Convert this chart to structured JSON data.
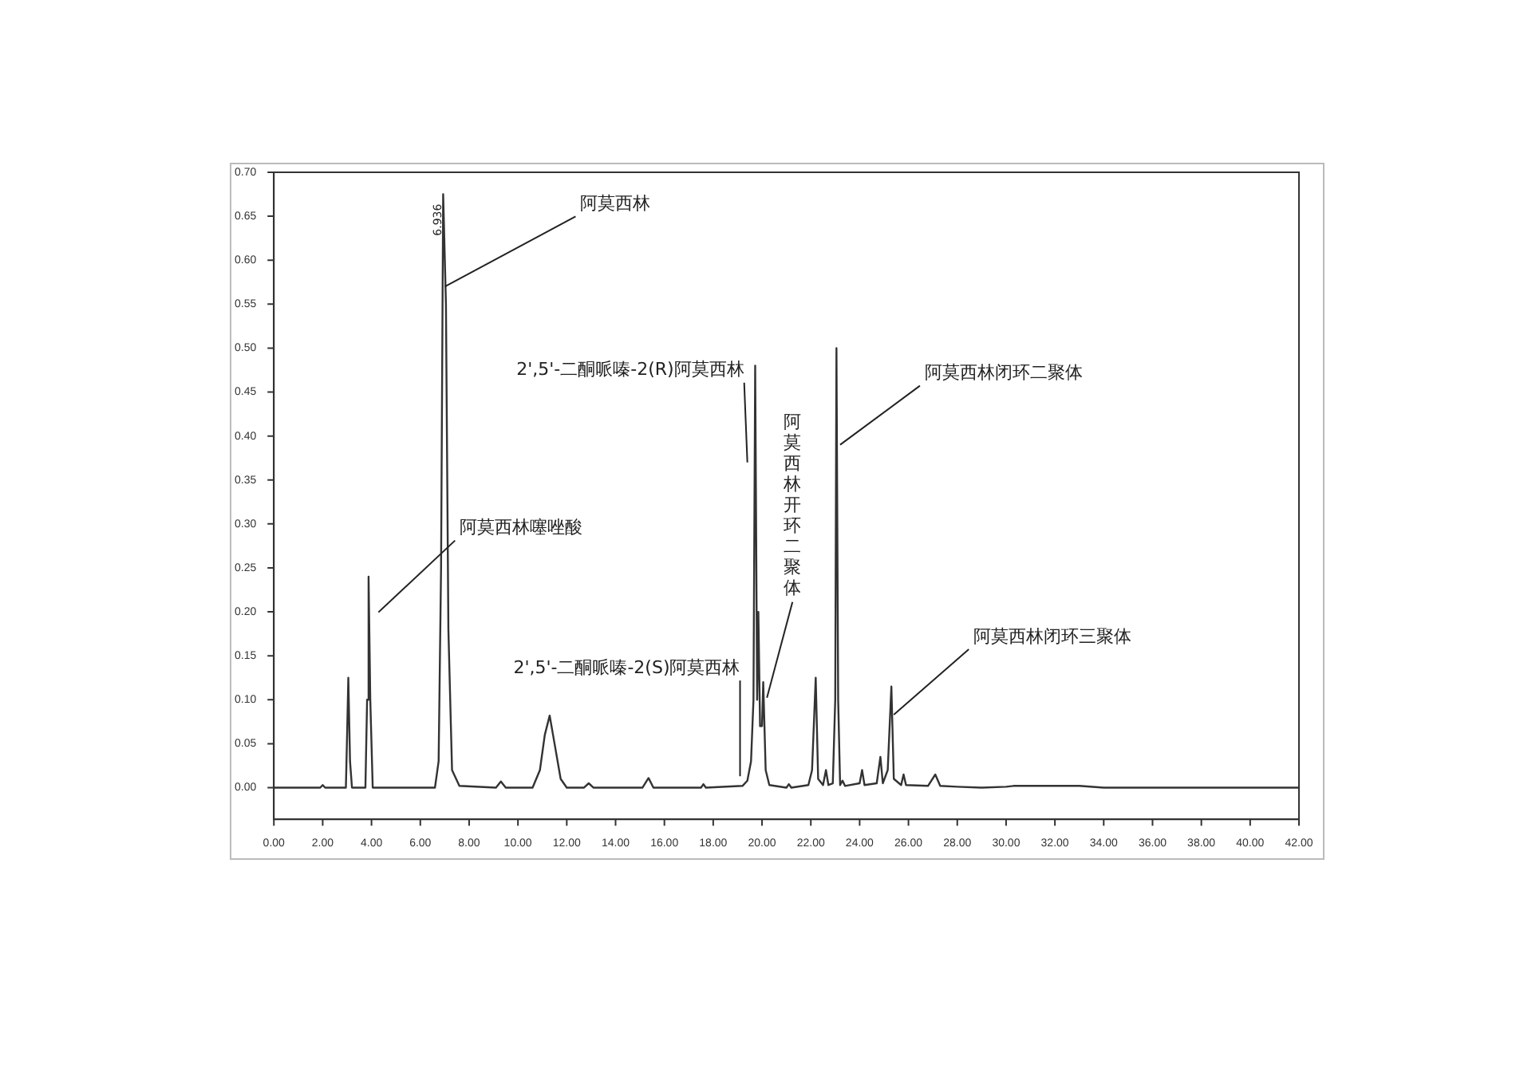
{
  "chart_data": {
    "type": "line",
    "grid": false,
    "legend": false,
    "marker": "none",
    "xlim": [
      0,
      42
    ],
    "ylim": [
      -0.036,
      0.7
    ],
    "xticks": [
      {
        "value": 0,
        "label": "0.00"
      },
      {
        "value": 2,
        "label": "2.00"
      },
      {
        "value": 4,
        "label": "4.00"
      },
      {
        "value": 6,
        "label": "6.00"
      },
      {
        "value": 8,
        "label": "8.00"
      },
      {
        "value": 10,
        "label": "10.00"
      },
      {
        "value": 12,
        "label": "12.00"
      },
      {
        "value": 14,
        "label": "14.00"
      },
      {
        "value": 16,
        "label": "16.00"
      },
      {
        "value": 18,
        "label": "18.00"
      },
      {
        "value": 20,
        "label": "20.00"
      },
      {
        "value": 22,
        "label": "22.00"
      },
      {
        "value": 24,
        "label": "24.00"
      },
      {
        "value": 26,
        "label": "26.00"
      },
      {
        "value": 28,
        "label": "28.00"
      },
      {
        "value": 30,
        "label": "30.00"
      },
      {
        "value": 32,
        "label": "32.00"
      },
      {
        "value": 34,
        "label": "34.00"
      },
      {
        "value": 36,
        "label": "36.00"
      },
      {
        "value": 38,
        "label": "38.00"
      },
      {
        "value": 40,
        "label": "40.00"
      },
      {
        "value": 42,
        "label": "42.00"
      }
    ],
    "yticks": [
      {
        "value": 0,
        "label": "0.00"
      },
      {
        "value": 0.05,
        "label": "0.05"
      },
      {
        "value": 0.1,
        "label": "0.10"
      },
      {
        "value": 0.15,
        "label": "0.15"
      },
      {
        "value": 0.2,
        "label": "0.20"
      },
      {
        "value": 0.25,
        "label": "0.25"
      },
      {
        "value": 0.3,
        "label": "0.30"
      },
      {
        "value": 0.35,
        "label": "0.35"
      },
      {
        "value": 0.4,
        "label": "0.40"
      },
      {
        "value": 0.45,
        "label": "0.45"
      },
      {
        "value": 0.5,
        "label": "0.50"
      },
      {
        "value": 0.55,
        "label": "0.55"
      },
      {
        "value": 0.6,
        "label": "0.60"
      },
      {
        "value": 0.65,
        "label": "0.65"
      },
      {
        "value": 0.7,
        "label": "0.70"
      }
    ],
    "series": [
      {
        "color": "#333333",
        "x": [
          0,
          1.9,
          2.0,
          2.1,
          2.95,
          3.0,
          3.05,
          3.12,
          3.2,
          3.75,
          3.82,
          3.88,
          3.95,
          4.05,
          6.6,
          6.75,
          6.85,
          6.936,
          7.05,
          7.15,
          7.3,
          7.6,
          9.1,
          9.3,
          9.5,
          10.6,
          10.9,
          11.1,
          11.3,
          11.5,
          11.75,
          12.0,
          12.7,
          12.9,
          13.1,
          15.1,
          15.35,
          15.55,
          17.5,
          17.6,
          17.7,
          19.2,
          19.4,
          19.55,
          19.65,
          19.72,
          19.8,
          19.85,
          19.92,
          20.0,
          20.05,
          20.15,
          20.3,
          21.0,
          21.1,
          21.2,
          21.9,
          22.05,
          22.2,
          22.3,
          22.5,
          22.62,
          22.72,
          22.9,
          23.0,
          23.05,
          23.12,
          23.2,
          23.3,
          23.4,
          24.0,
          24.1,
          24.2,
          24.7,
          24.85,
          24.95,
          25.15,
          25.3,
          25.4,
          25.7,
          25.8,
          25.9,
          26.8,
          27.1,
          27.3,
          28,
          29,
          30,
          30.3,
          33,
          34,
          42
        ],
        "values": [
          0,
          0,
          0.003,
          0,
          0,
          0.06,
          0.125,
          0.03,
          0,
          0,
          0.1,
          0.24,
          0.1,
          0,
          0,
          0.03,
          0.25,
          0.675,
          0.55,
          0.18,
          0.02,
          0.002,
          0,
          0.007,
          0,
          0,
          0.02,
          0.06,
          0.082,
          0.05,
          0.01,
          0,
          0,
          0.005,
          0,
          0,
          0.011,
          0,
          0,
          0.004,
          0,
          0.002,
          0.008,
          0.03,
          0.1,
          0.48,
          0.1,
          0.2,
          0.07,
          0.07,
          0.12,
          0.02,
          0.003,
          0,
          0.004,
          0,
          0.003,
          0.02,
          0.125,
          0.01,
          0.003,
          0.02,
          0.003,
          0.005,
          0.1,
          0.5,
          0.1,
          0.003,
          0.008,
          0.002,
          0.005,
          0.02,
          0.003,
          0.005,
          0.035,
          0.005,
          0.02,
          0.115,
          0.01,
          0.003,
          0.015,
          0.003,
          0.002,
          0.015,
          0.002,
          0.001,
          0,
          0.001,
          0.002,
          0.002,
          0,
          0
        ]
      }
    ],
    "annotations": [
      {
        "text": "阿莫西林",
        "x": 7.0,
        "y": 0.57
      },
      "阿莫西林噻唑酸",
      {
        "text": "2',5'-二酮哌嗪-2(R)阿莫西林",
        "x": 19.4,
        "y": 0.37
      },
      "阿莫西林开环二聚体",
      {
        "text": "2',5'-二酮哌嗪-2(S)阿莫西林",
        "x": 19.1,
        "y": 0.013
      },
      {
        "text": "阿莫西林闭环二聚体",
        "x": 23.2,
        "y": 0.39
      },
      {
        "text": "阿莫西林闭环三聚体",
        "x": 25.4,
        "y": 0.083
      },
      {
        "text": "6.936",
        "x": 6.936,
        "y": 0.675
      }
    ]
  }
}
